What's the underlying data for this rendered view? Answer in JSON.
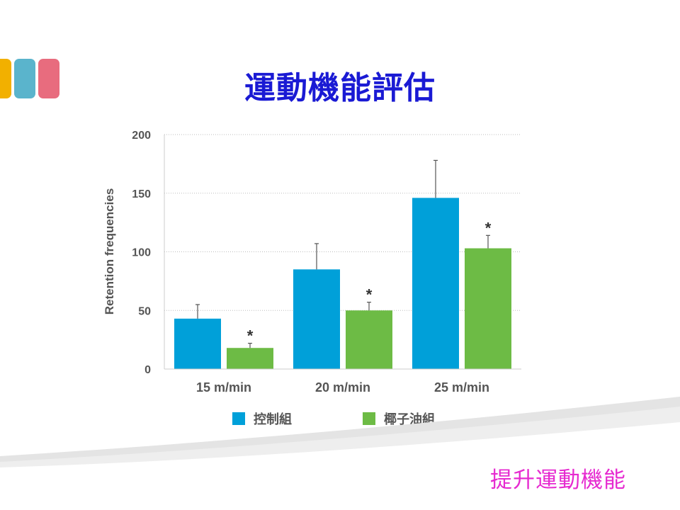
{
  "slide": {
    "title": "運動機能評估",
    "footer_text": "提升運動機能"
  },
  "colors": {
    "title": "#1a1ad4",
    "footer": "#e62ad0",
    "control": "#00a0d9",
    "coconut": "#6dbb45",
    "deco": [
      "#f2b000",
      "#5ab4cc",
      "#e86c7e"
    ]
  },
  "chart_data": {
    "type": "bar",
    "title": "",
    "xlabel": "",
    "ylabel": "Retention frequencies",
    "ylim": [
      0,
      200
    ],
    "yticks": [
      0,
      50,
      100,
      150,
      200
    ],
    "grid": true,
    "categories": [
      "15 m/min",
      "20 m/min",
      "25 m/min"
    ],
    "series": [
      {
        "name": "控制組",
        "values": [
          43,
          85,
          146
        ],
        "errors": [
          12,
          22,
          32
        ]
      },
      {
        "name": "椰子油組",
        "values": [
          18,
          50,
          103
        ],
        "errors": [
          4,
          7,
          11
        ]
      }
    ],
    "significance": [
      {
        "series": 1,
        "category": 0,
        "label": "*"
      },
      {
        "series": 1,
        "category": 1,
        "label": "*"
      },
      {
        "series": 1,
        "category": 2,
        "label": "*"
      }
    ],
    "legend_position": "bottom"
  }
}
